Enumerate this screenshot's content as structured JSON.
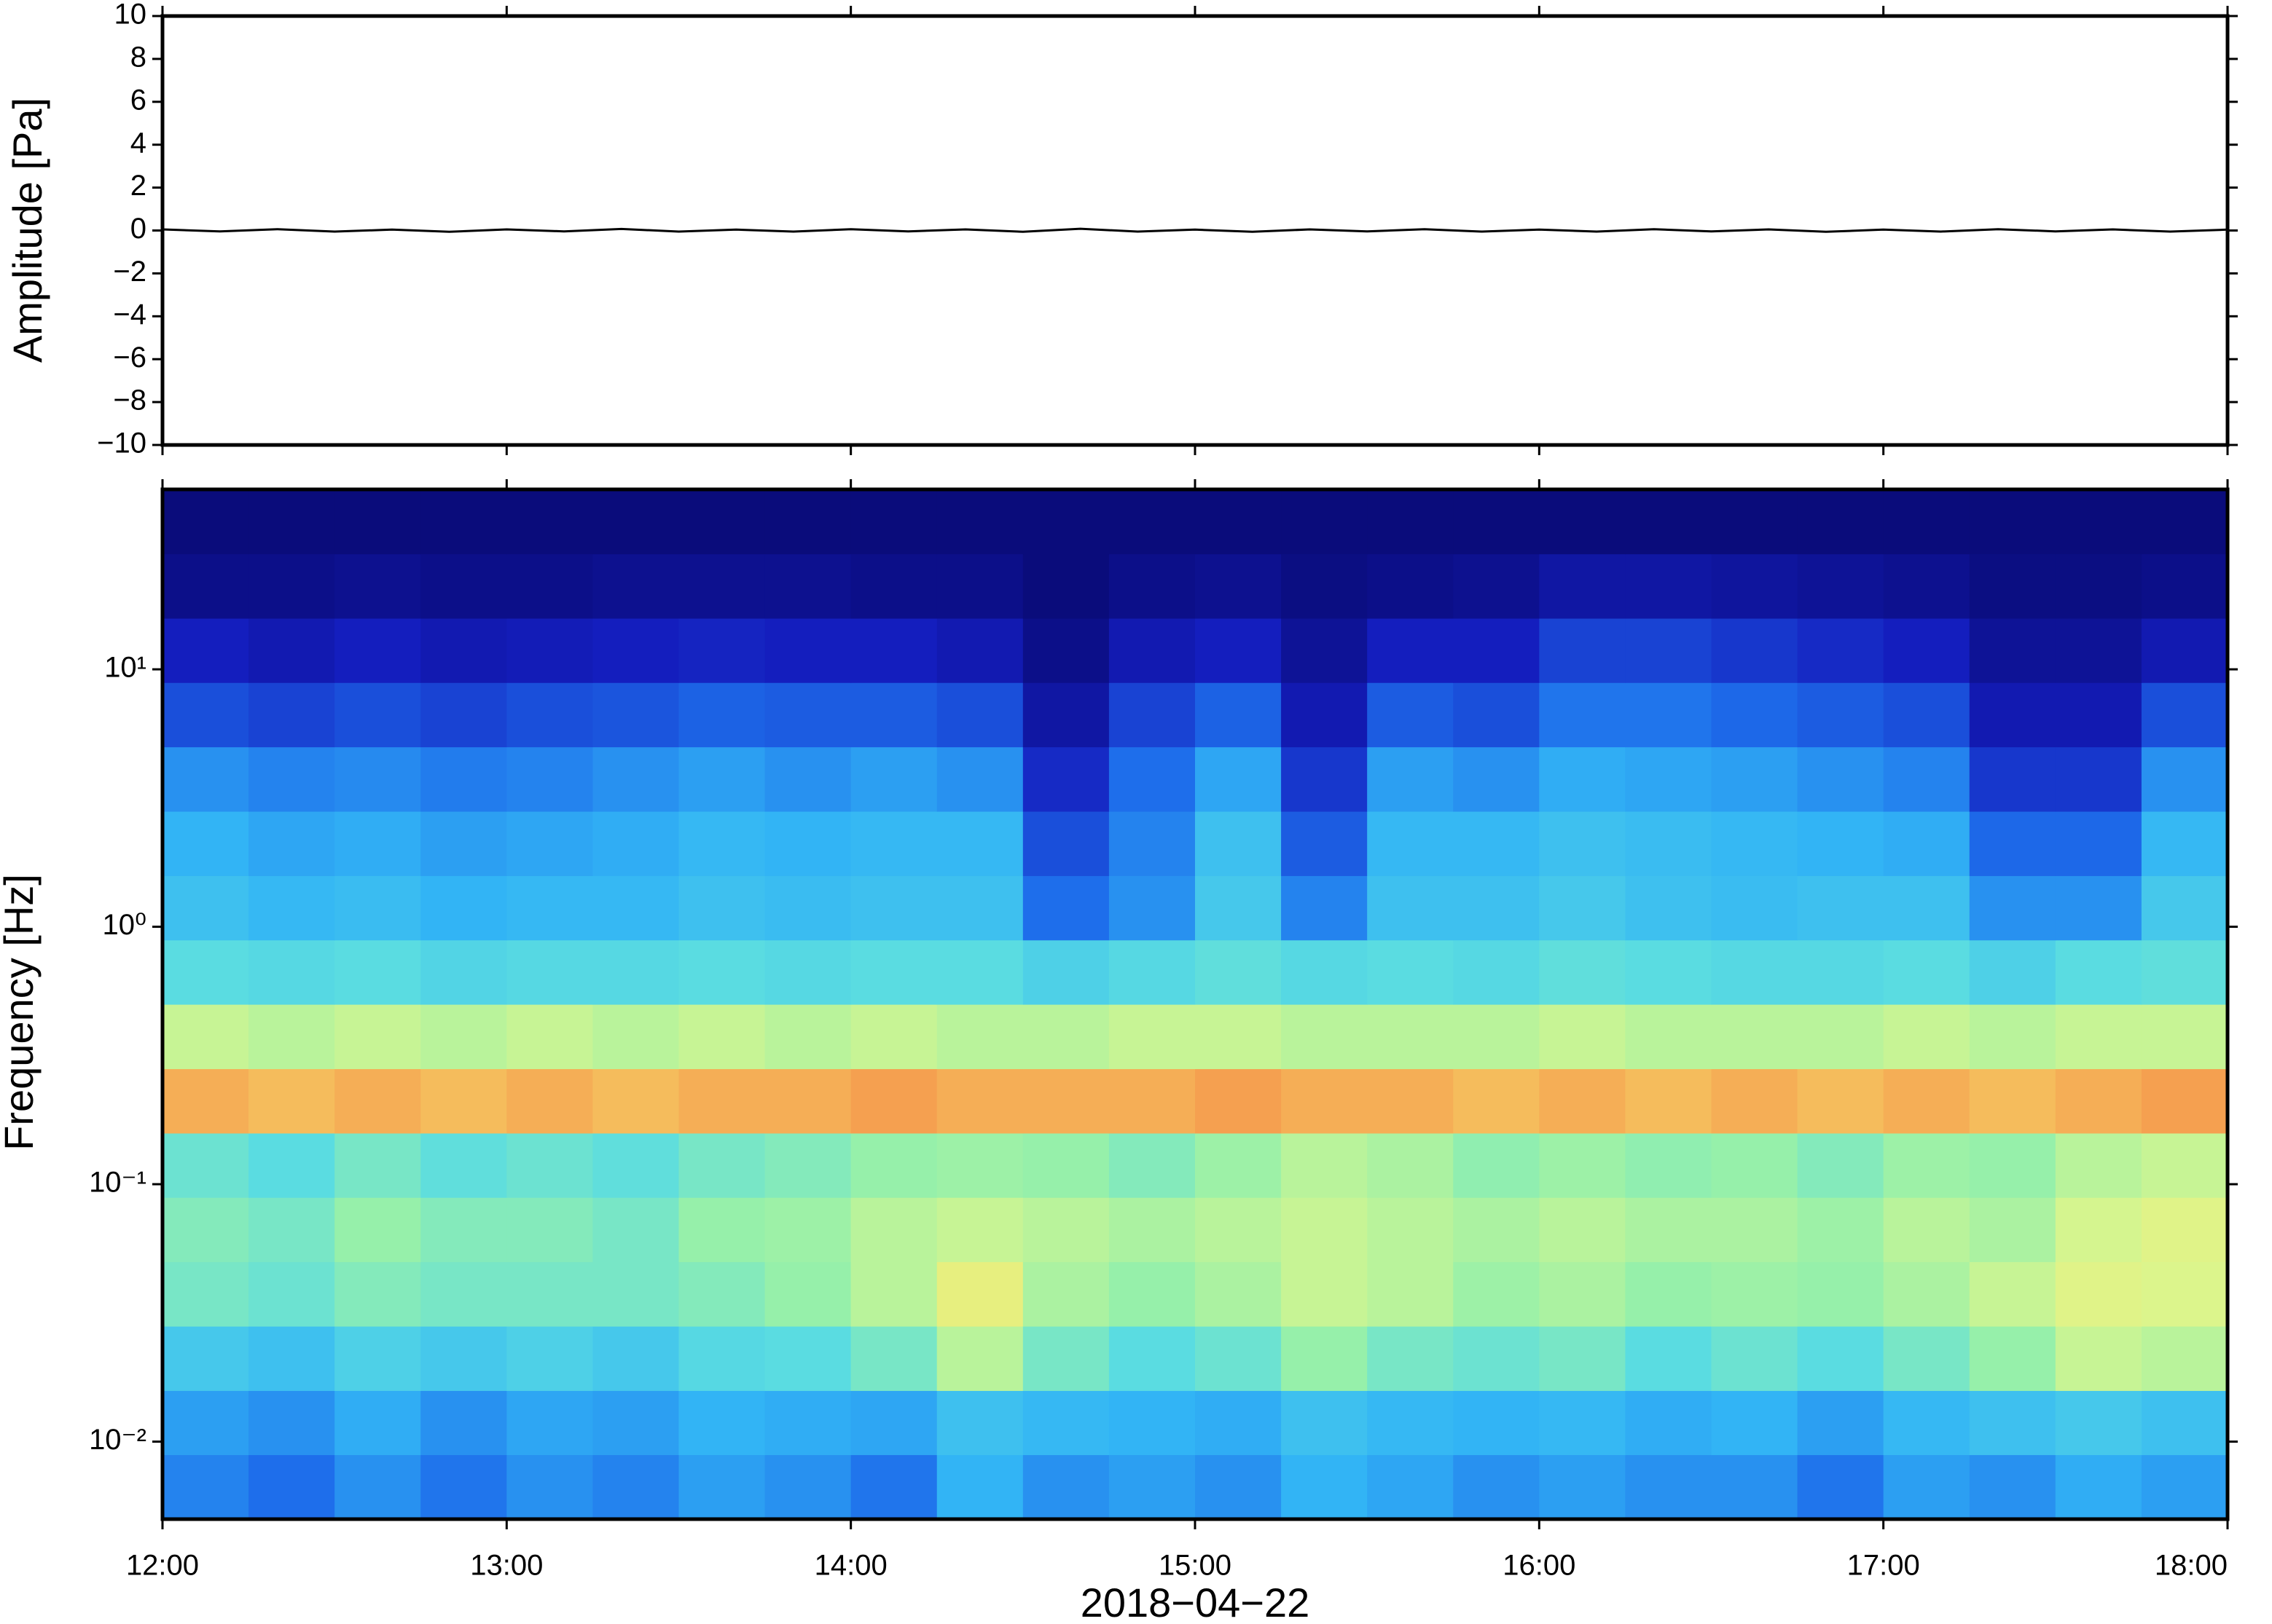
{
  "chart_data": [
    {
      "type": "line",
      "ylabel": "Amplitude [Pa]",
      "ylim": [
        -10,
        10
      ],
      "yticks": [
        {
          "value": -10,
          "label": "−10"
        },
        {
          "value": -8,
          "label": "−8"
        },
        {
          "value": -6,
          "label": "−6"
        },
        {
          "value": -4,
          "label": "−4"
        },
        {
          "value": -2,
          "label": "−2"
        },
        0,
        2,
        4,
        6,
        8,
        10
      ],
      "xlim": [
        "12:00",
        "18:00"
      ],
      "color": "#000000",
      "x": [
        "12:00",
        "12:10",
        "12:20",
        "12:30",
        "12:40",
        "12:50",
        "13:00",
        "13:10",
        "13:20",
        "13:30",
        "13:40",
        "13:50",
        "14:00",
        "14:10",
        "14:20",
        "14:30",
        "14:40",
        "14:50",
        "15:00",
        "15:10",
        "15:20",
        "15:30",
        "15:40",
        "15:50",
        "16:00",
        "16:10",
        "16:20",
        "16:30",
        "16:40",
        "16:50",
        "17:00",
        "17:10",
        "17:20",
        "17:30",
        "17:40",
        "17:50",
        "18:00"
      ],
      "values": [
        0.05,
        -0.04,
        0.06,
        -0.05,
        0.04,
        -0.06,
        0.05,
        -0.04,
        0.07,
        -0.05,
        0.04,
        -0.05,
        0.06,
        -0.04,
        0.05,
        -0.06,
        0.08,
        -0.05,
        0.04,
        -0.06,
        0.05,
        -0.04,
        0.06,
        -0.05,
        0.04,
        -0.05,
        0.06,
        -0.04,
        0.05,
        -0.06,
        0.04,
        -0.05,
        0.06,
        -0.04,
        0.05,
        -0.05,
        0.04
      ]
    },
    {
      "type": "heatmap",
      "ylabel": "Frequency [Hz]",
      "xlabel": "2018−04−22",
      "colormap": "jet",
      "log_y": true,
      "xlim": [
        "12:00",
        "18:00"
      ],
      "xticks": [
        "12:00",
        "13:00",
        "14:00",
        "15:00",
        "16:00",
        "17:00",
        "18:00"
      ],
      "ylim": [
        0.005,
        50
      ],
      "yticks": [
        {
          "value": 0.01,
          "label": "10⁻²"
        },
        {
          "value": 0.1,
          "label": "10⁻¹"
        },
        {
          "value": 1,
          "label": "10⁰"
        },
        {
          "value": 10,
          "label": "10¹"
        }
      ],
      "zlim": [
        0,
        1
      ],
      "x_edges": [
        "12:00",
        "12:15",
        "12:30",
        "12:45",
        "13:00",
        "13:15",
        "13:30",
        "13:45",
        "14:00",
        "14:15",
        "14:30",
        "14:45",
        "15:00",
        "15:15",
        "15:30",
        "15:45",
        "16:00",
        "16:15",
        "16:30",
        "16:45",
        "17:00",
        "17:15",
        "17:30",
        "17:45",
        "18:00"
      ],
      "y_edges": [
        0.005,
        0.0089,
        0.0158,
        0.0281,
        0.05,
        0.0889,
        0.158,
        0.281,
        0.5,
        0.889,
        1.58,
        2.81,
        5,
        8.89,
        15.8,
        28.1,
        50
      ],
      "z": [
        [
          0.28,
          0.25,
          0.3,
          0.26,
          0.3,
          0.28,
          0.32,
          0.3,
          0.26,
          0.35,
          0.3,
          0.32,
          0.3,
          0.35,
          0.33,
          0.3,
          0.32,
          0.3,
          0.3,
          0.26,
          0.32,
          0.3,
          0.34,
          0.32
        ],
        [
          0.32,
          0.3,
          0.34,
          0.3,
          0.33,
          0.32,
          0.35,
          0.34,
          0.33,
          0.38,
          0.36,
          0.35,
          0.34,
          0.38,
          0.36,
          0.35,
          0.36,
          0.34,
          0.35,
          0.32,
          0.36,
          0.38,
          0.4,
          0.38
        ],
        [
          0.4,
          0.38,
          0.42,
          0.4,
          0.42,
          0.4,
          0.44,
          0.45,
          0.5,
          0.6,
          0.5,
          0.45,
          0.48,
          0.55,
          0.5,
          0.48,
          0.5,
          0.45,
          0.48,
          0.45,
          0.5,
          0.55,
          0.62,
          0.6
        ],
        [
          0.5,
          0.48,
          0.52,
          0.5,
          0.5,
          0.5,
          0.52,
          0.55,
          0.6,
          0.68,
          0.58,
          0.55,
          0.58,
          0.62,
          0.6,
          0.56,
          0.58,
          0.55,
          0.56,
          0.55,
          0.58,
          0.62,
          0.66,
          0.65
        ],
        [
          0.52,
          0.5,
          0.55,
          0.52,
          0.52,
          0.5,
          0.55,
          0.56,
          0.6,
          0.62,
          0.6,
          0.58,
          0.6,
          0.62,
          0.6,
          0.58,
          0.6,
          0.58,
          0.58,
          0.56,
          0.6,
          0.58,
          0.64,
          0.66
        ],
        [
          0.48,
          0.45,
          0.5,
          0.46,
          0.48,
          0.46,
          0.5,
          0.52,
          0.55,
          0.56,
          0.55,
          0.52,
          0.56,
          0.6,
          0.58,
          0.54,
          0.56,
          0.54,
          0.55,
          0.52,
          0.56,
          0.55,
          0.6,
          0.62
        ],
        [
          0.8,
          0.78,
          0.8,
          0.78,
          0.8,
          0.78,
          0.8,
          0.8,
          0.82,
          0.8,
          0.8,
          0.8,
          0.82,
          0.8,
          0.8,
          0.78,
          0.8,
          0.78,
          0.8,
          0.78,
          0.8,
          0.78,
          0.8,
          0.82
        ],
        [
          0.62,
          0.6,
          0.62,
          0.6,
          0.62,
          0.6,
          0.62,
          0.6,
          0.62,
          0.6,
          0.6,
          0.62,
          0.62,
          0.6,
          0.6,
          0.6,
          0.62,
          0.6,
          0.6,
          0.6,
          0.62,
          0.6,
          0.62,
          0.62
        ],
        [
          0.45,
          0.44,
          0.45,
          0.43,
          0.44,
          0.44,
          0.45,
          0.44,
          0.45,
          0.45,
          0.42,
          0.44,
          0.46,
          0.44,
          0.45,
          0.44,
          0.46,
          0.45,
          0.44,
          0.44,
          0.45,
          0.42,
          0.45,
          0.46
        ],
        [
          0.38,
          0.36,
          0.37,
          0.35,
          0.36,
          0.36,
          0.38,
          0.37,
          0.38,
          0.38,
          0.25,
          0.3,
          0.4,
          0.28,
          0.38,
          0.38,
          0.4,
          0.38,
          0.37,
          0.38,
          0.38,
          0.3,
          0.3,
          0.4
        ],
        [
          0.35,
          0.33,
          0.34,
          0.32,
          0.33,
          0.34,
          0.36,
          0.35,
          0.36,
          0.36,
          0.2,
          0.28,
          0.38,
          0.22,
          0.36,
          0.36,
          0.38,
          0.37,
          0.36,
          0.35,
          0.34,
          0.24,
          0.24,
          0.36
        ],
        [
          0.3,
          0.28,
          0.29,
          0.27,
          0.28,
          0.3,
          0.32,
          0.3,
          0.32,
          0.3,
          0.14,
          0.25,
          0.33,
          0.16,
          0.32,
          0.3,
          0.34,
          0.33,
          0.32,
          0.3,
          0.28,
          0.16,
          0.16,
          0.3
        ],
        [
          0.2,
          0.18,
          0.2,
          0.18,
          0.2,
          0.21,
          0.23,
          0.22,
          0.22,
          0.2,
          0.08,
          0.18,
          0.23,
          0.1,
          0.22,
          0.2,
          0.26,
          0.26,
          0.24,
          0.22,
          0.2,
          0.1,
          0.1,
          0.2
        ],
        [
          0.12,
          0.1,
          0.12,
          0.1,
          0.11,
          0.12,
          0.13,
          0.12,
          0.12,
          0.1,
          0.04,
          0.1,
          0.12,
          0.06,
          0.12,
          0.12,
          0.18,
          0.18,
          0.16,
          0.14,
          0.12,
          0.06,
          0.06,
          0.1
        ],
        [
          0.04,
          0.04,
          0.05,
          0.04,
          0.04,
          0.05,
          0.05,
          0.05,
          0.04,
          0.04,
          0.02,
          0.04,
          0.05,
          0.03,
          0.04,
          0.05,
          0.08,
          0.08,
          0.07,
          0.06,
          0.05,
          0.03,
          0.03,
          0.04
        ],
        [
          0.02,
          0.02,
          0.02,
          0.02,
          0.02,
          0.02,
          0.02,
          0.02,
          0.02,
          0.02,
          0.02,
          0.02,
          0.02,
          0.02,
          0.02,
          0.02,
          0.02,
          0.02,
          0.02,
          0.02,
          0.02,
          0.02,
          0.02,
          0.02
        ]
      ]
    }
  ]
}
